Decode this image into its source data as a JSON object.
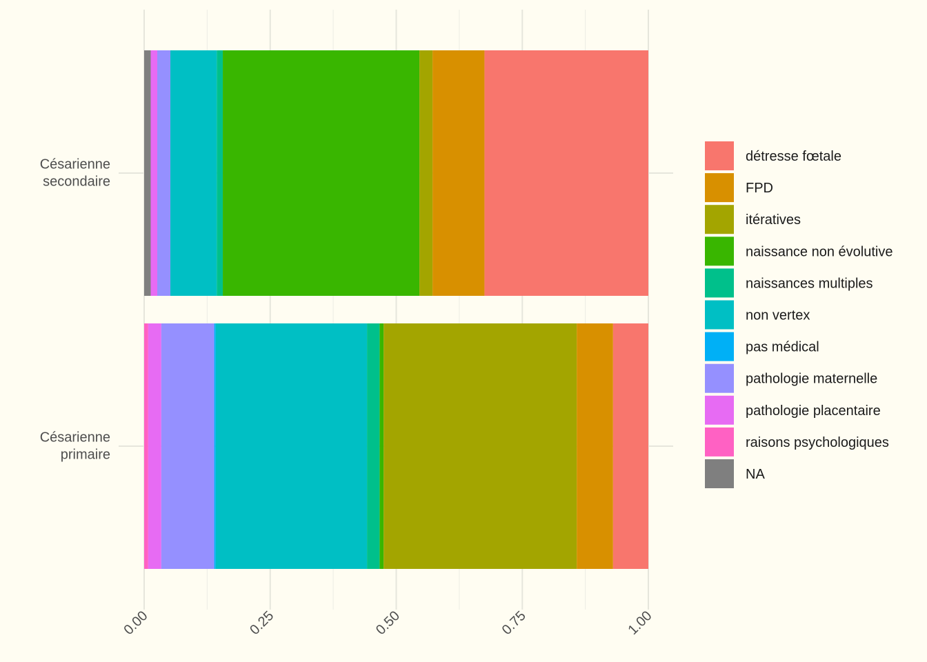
{
  "chart_data": {
    "type": "bar",
    "orientation": "horizontal",
    "stacked": true,
    "normalized": true,
    "title": "",
    "xlabel": "",
    "ylabel": "",
    "xlim": [
      0,
      1
    ],
    "x_ticks": [
      "0.00",
      "0.25",
      "0.50",
      "0.75",
      "1.00"
    ],
    "grid": true,
    "legend_position": "right",
    "categories": [
      "Césarienne\nsecondaire",
      "Césarienne\nprimaire"
    ],
    "series": [
      {
        "name": "NA",
        "color": "#7f7f7f",
        "values": [
          0.013,
          0.0
        ]
      },
      {
        "name": "raisons psychologiques",
        "color": "#ff61c3",
        "values": [
          0.0,
          0.008
        ]
      },
      {
        "name": "pathologie placentaire",
        "color": "#e76bf3",
        "values": [
          0.013,
          0.026
        ]
      },
      {
        "name": "pathologie maternelle",
        "color": "#9590ff",
        "values": [
          0.026,
          0.105
        ]
      },
      {
        "name": "pas médical",
        "color": "#00b0f6",
        "values": [
          0.0,
          0.003
        ]
      },
      {
        "name": "non vertex",
        "color": "#00bfc4",
        "values": [
          0.092,
          0.3
        ]
      },
      {
        "name": "naissances multiples",
        "color": "#00c08b",
        "values": [
          0.012,
          0.025
        ]
      },
      {
        "name": "naissance non évolutive",
        "color": "#39b600",
        "values": [
          0.39,
          0.008
        ]
      },
      {
        "name": "itératives",
        "color": "#a3a500",
        "values": [
          0.026,
          0.383
        ]
      },
      {
        "name": "FPD",
        "color": "#d89000",
        "values": [
          0.103,
          0.072
        ]
      },
      {
        "name": "détresse fœtale",
        "color": "#f8766d",
        "values": [
          0.325,
          0.07
        ]
      }
    ],
    "legend_order": [
      "détresse fœtale",
      "FPD",
      "itératives",
      "naissance non évolutive",
      "naissances multiples",
      "non vertex",
      "pas médical",
      "pathologie maternelle",
      "pathologie placentaire",
      "raisons psychologiques",
      "NA"
    ],
    "colors": {
      "background": "#fffdf2",
      "grid_major": "#e6e6dc",
      "grid_minor": "#efefe6",
      "text": "#4d4d4d"
    }
  }
}
